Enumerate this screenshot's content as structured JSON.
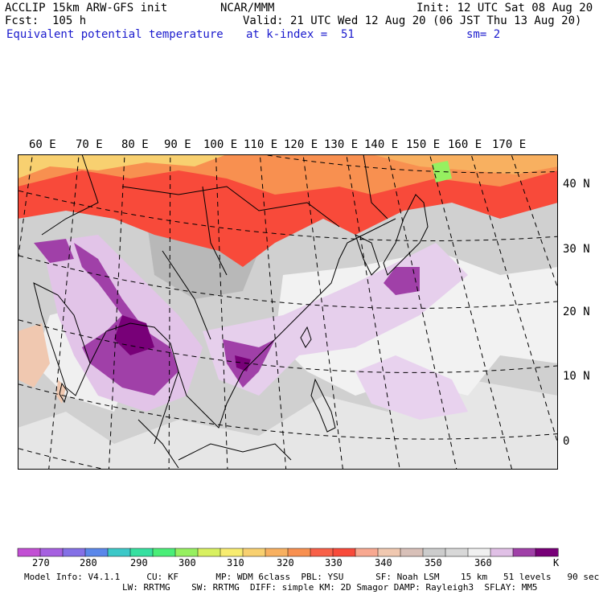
{
  "header": {
    "model": "ACCLIP 15km ARW-GFS init",
    "center": "NCAR/MMM",
    "init": "Init: 12 UTC Sat 08 Aug 20",
    "fcst": "Fcst:  105 h",
    "valid": "Valid: 21 UTC Wed 12 Aug 20 (06 JST Thu 13 Aug 20)",
    "field": "Equivalent potential temperature",
    "level": "at k-index =  51",
    "smooth": "sm= 2"
  },
  "map": {
    "lon_labels": [
      "60 E",
      "70 E",
      "80 E",
      "90 E",
      "100 E",
      "110 E",
      "120 E",
      "130 E",
      "140 E",
      "150 E",
      "160 E",
      "170 E"
    ],
    "lat_labels": [
      "40 N",
      "30 N",
      "20 N",
      "10 N",
      "0"
    ]
  },
  "colorbar": {
    "colors": [
      "#c24fd4",
      "#a660e0",
      "#8470e6",
      "#5a87ea",
      "#3cc8c8",
      "#36e0a0",
      "#4aee78",
      "#96f060",
      "#d8f060",
      "#f8ec70",
      "#f8d070",
      "#f8b060",
      "#f89050",
      "#f86048",
      "#f84a3a",
      "#f8a890",
      "#f0c8b0",
      "#d8c0b8",
      "#cccccc",
      "#d8d8d8",
      "#f0f0f0",
      "#e0c0e6",
      "#a040a8",
      "#780078"
    ],
    "labels": [
      "270",
      "280",
      "290",
      "300",
      "310",
      "320",
      "330",
      "340",
      "350",
      "360"
    ],
    "unit": "K"
  },
  "footer": {
    "line1": "Model Info: V4.1.1     CU: KF       MP: WDM 6class  PBL: YSU      SF: Noah LSM    15 km   51 levels   90 sec",
    "line2": "LW: RRTMG    SW: RRTMG  DIFF: simple KM: 2D Smagor DAMP: Rayleigh3  SFLAY: MM5"
  }
}
